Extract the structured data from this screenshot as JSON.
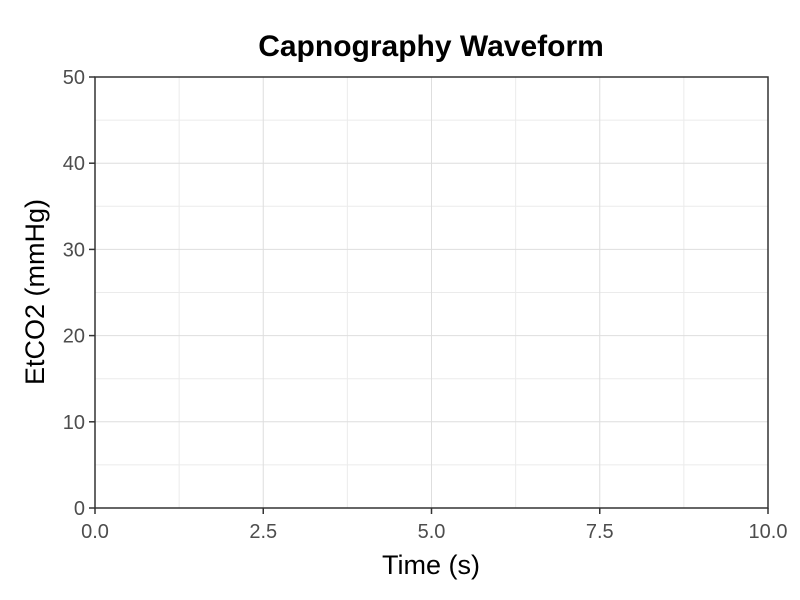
{
  "chart_data": {
    "type": "line",
    "title": "Capnography Waveform",
    "xlabel": "Time (s)",
    "ylabel": "EtCO2 (mmHg)",
    "xlim": [
      0,
      10
    ],
    "ylim": [
      0,
      50
    ],
    "x_ticks": [
      0,
      2.5,
      5,
      7.5,
      10
    ],
    "x_tick_labels": [
      "0.0",
      "2.5",
      "5.0",
      "7.5",
      "10.0"
    ],
    "y_ticks": [
      0,
      10,
      20,
      30,
      40,
      50
    ],
    "y_tick_labels": [
      "0",
      "10",
      "20",
      "30",
      "40",
      "50"
    ],
    "grid": true,
    "series": []
  },
  "colors": {
    "major_grid": "#dedede",
    "minor_grid": "#ebebeb",
    "axis_line": "#333333",
    "tick_text": "#4d4d4d"
  }
}
